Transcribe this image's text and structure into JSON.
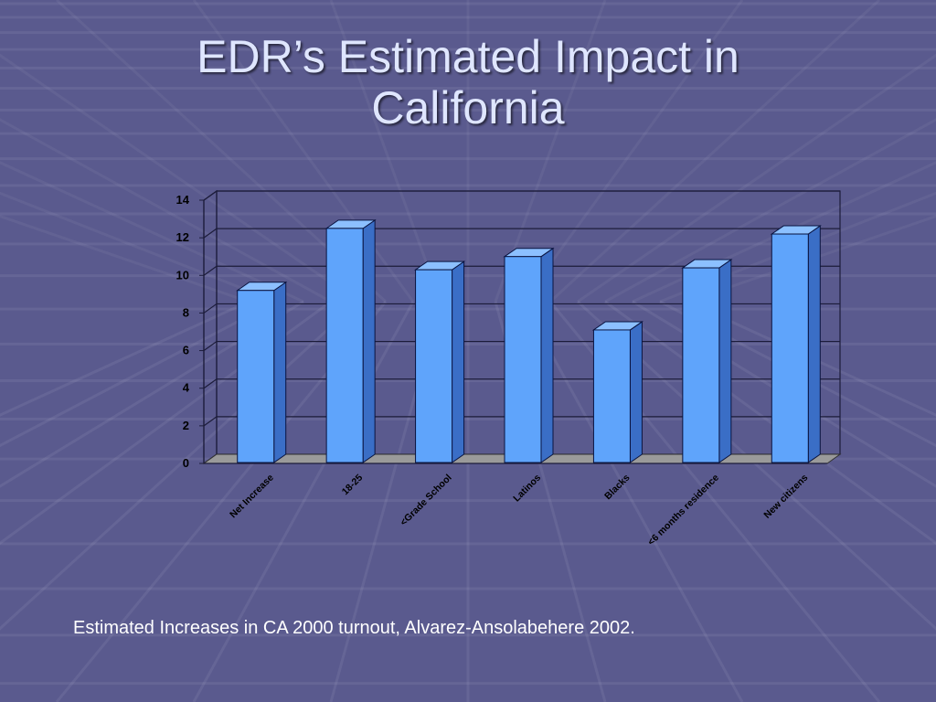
{
  "slide": {
    "title_line1": "EDR’s Estimated Impact in",
    "title_line2": "California",
    "caption": "Estimated Increases in CA 2000 turnout, Alvarez-Ansolabehere 2002."
  },
  "colors": {
    "background": "#5a5a8e",
    "bar_front": "#5fa4fb",
    "bar_side": "#3a6ec6",
    "bar_top": "#8cc0ff",
    "floor": "#9a9a9a",
    "title_text": "#dfe6ff"
  },
  "chart_data": {
    "type": "bar",
    "style": "3d-column",
    "categories": [
      "Net Increase",
      "18-25",
      "<Grade School",
      "Latinos",
      "Blacks",
      "<6 months residence",
      "New citizens"
    ],
    "values": [
      9.2,
      12.5,
      10.3,
      11.0,
      7.1,
      10.4,
      12.2
    ],
    "yticks": [
      "0",
      "2",
      "4",
      "6",
      "8",
      "10",
      "12",
      "14"
    ],
    "ylim": [
      0,
      14
    ],
    "grid": true,
    "legend": "none"
  }
}
